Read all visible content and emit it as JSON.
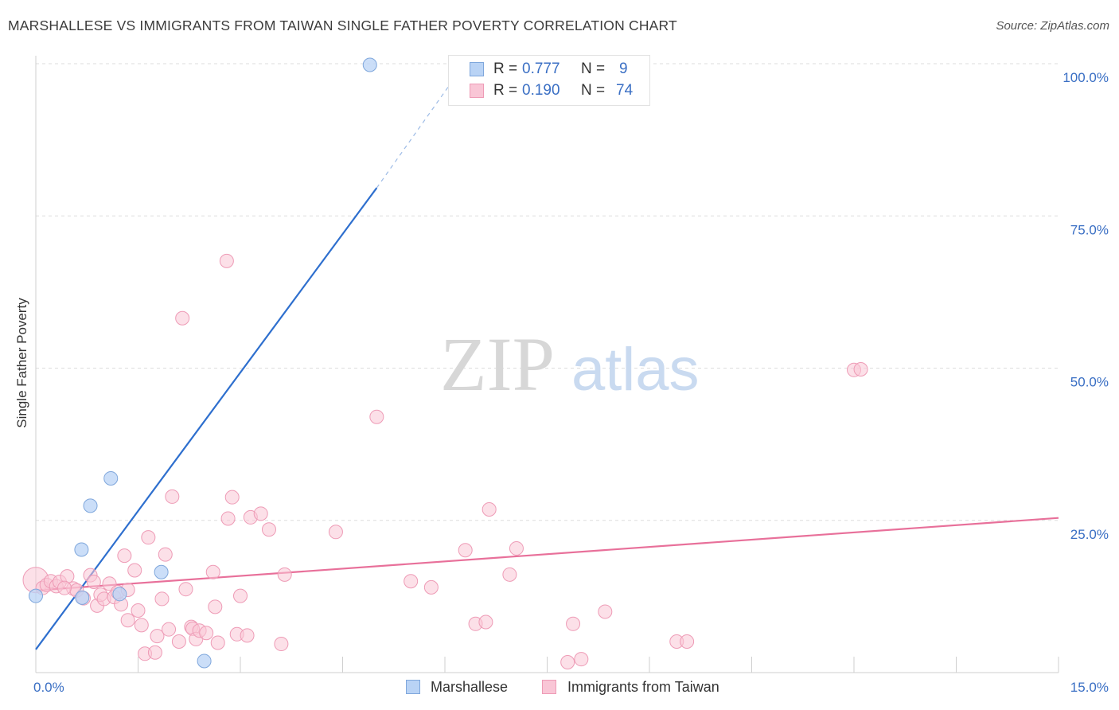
{
  "header": {
    "title": "MARSHALLESE VS IMMIGRANTS FROM TAIWAN SINGLE FATHER POVERTY CORRELATION CHART",
    "source": "Source: ZipAtlas.com"
  },
  "watermark": {
    "zip": "ZIP",
    "atlas": "atlas"
  },
  "legend_top": {
    "rows": [
      {
        "r_label": "R =",
        "r_value": "0.777",
        "n_label": "N =",
        "n_value": "9"
      },
      {
        "r_label": "R =",
        "r_value": "0.190",
        "n_label": "N =",
        "n_value": "74"
      }
    ]
  },
  "legend_bottom": [
    {
      "label": "Marshallese"
    },
    {
      "label": "Immigrants from Taiwan"
    }
  ],
  "colors": {
    "blue_fill": "#b9d3f5",
    "blue_stroke": "#7fa7dc",
    "blue_line": "#2e6fce",
    "pink_fill": "#f9c6d6",
    "pink_stroke": "#ee9bb6",
    "pink_line": "#e8709a",
    "grid": "#dddddd",
    "tick_text": "#3a6fc4"
  },
  "chart_data": {
    "type": "scatter",
    "title": "MARSHALLESE VS IMMIGRANTS FROM TAIWAN SINGLE FATHER POVERTY CORRELATION CHART",
    "xlabel": "",
    "ylabel": "Single Father Poverty",
    "xlim": [
      0,
      15
    ],
    "ylim": [
      0,
      103
    ],
    "x_tick_labels": [
      "0.0%",
      "15.0%"
    ],
    "y_ticks": [
      25,
      50,
      75,
      100
    ],
    "y_tick_labels": [
      "25.0%",
      "50.0%",
      "75.0%",
      "100.0%"
    ],
    "grid": true,
    "series": [
      {
        "name": "Marshallese",
        "points": [
          [
            0.0,
            12.6
          ],
          [
            0.68,
            12.3
          ],
          [
            0.8,
            27.4
          ],
          [
            0.67,
            20.2
          ],
          [
            1.1,
            31.9
          ],
          [
            1.23,
            12.9
          ],
          [
            1.84,
            16.5
          ],
          [
            2.47,
            1.9
          ],
          [
            4.9,
            99.8
          ]
        ],
        "trendline": {
          "x0": 0.0,
          "y0": 3.8,
          "x1": 5.0,
          "y1": 79.6,
          "dashed_to": [
            6.1,
            97.0
          ]
        }
      },
      {
        "name": "Immigrants from Taiwan",
        "points": [
          [
            0.0,
            15.2
          ],
          [
            0.1,
            13.9
          ],
          [
            0.16,
            14.4
          ],
          [
            0.22,
            15.0
          ],
          [
            0.3,
            14.2
          ],
          [
            0.35,
            14.9
          ],
          [
            0.46,
            15.8
          ],
          [
            0.55,
            13.8
          ],
          [
            0.6,
            13.5
          ],
          [
            0.7,
            12.2
          ],
          [
            0.8,
            16.0
          ],
          [
            0.85,
            14.9
          ],
          [
            0.9,
            11.0
          ],
          [
            0.95,
            12.8
          ],
          [
            1.0,
            12.1
          ],
          [
            1.08,
            14.6
          ],
          [
            1.15,
            12.4
          ],
          [
            1.2,
            13.2
          ],
          [
            1.25,
            11.2
          ],
          [
            1.3,
            19.2
          ],
          [
            1.35,
            8.6
          ],
          [
            1.45,
            16.8
          ],
          [
            1.5,
            10.2
          ],
          [
            1.55,
            7.8
          ],
          [
            1.6,
            3.1
          ],
          [
            1.65,
            22.2
          ],
          [
            1.75,
            3.3
          ],
          [
            1.78,
            6.0
          ],
          [
            1.85,
            12.1
          ],
          [
            1.9,
            19.4
          ],
          [
            1.95,
            7.1
          ],
          [
            2.0,
            28.9
          ],
          [
            2.1,
            5.1
          ],
          [
            2.15,
            58.2
          ],
          [
            2.2,
            13.7
          ],
          [
            2.28,
            7.5
          ],
          [
            2.3,
            7.2
          ],
          [
            2.35,
            5.5
          ],
          [
            2.4,
            6.9
          ],
          [
            2.5,
            6.5
          ],
          [
            2.6,
            16.5
          ],
          [
            2.63,
            10.8
          ],
          [
            2.67,
            4.9
          ],
          [
            2.8,
            67.6
          ],
          [
            2.82,
            25.3
          ],
          [
            2.88,
            28.8
          ],
          [
            2.95,
            6.3
          ],
          [
            3.0,
            12.6
          ],
          [
            3.1,
            6.1
          ],
          [
            3.15,
            25.5
          ],
          [
            3.3,
            26.1
          ],
          [
            3.42,
            23.5
          ],
          [
            3.6,
            4.7
          ],
          [
            3.65,
            16.1
          ],
          [
            4.4,
            23.1
          ],
          [
            5.0,
            42.0
          ],
          [
            5.5,
            15.0
          ],
          [
            5.8,
            14.0
          ],
          [
            6.3,
            20.1
          ],
          [
            6.45,
            8.0
          ],
          [
            6.6,
            8.3
          ],
          [
            6.65,
            26.8
          ],
          [
            6.95,
            16.1
          ],
          [
            7.05,
            20.4
          ],
          [
            7.8,
            1.7
          ],
          [
            7.88,
            8.0
          ],
          [
            8.0,
            2.2
          ],
          [
            8.35,
            10.0
          ],
          [
            9.4,
            5.1
          ],
          [
            9.55,
            5.1
          ],
          [
            12.0,
            49.7
          ],
          [
            12.1,
            49.8
          ],
          [
            1.35,
            13.6
          ],
          [
            0.42,
            13.9
          ]
        ],
        "trendline": {
          "x0": 0.0,
          "y0": 13.5,
          "x1": 15.0,
          "y1": 25.4
        }
      }
    ]
  }
}
